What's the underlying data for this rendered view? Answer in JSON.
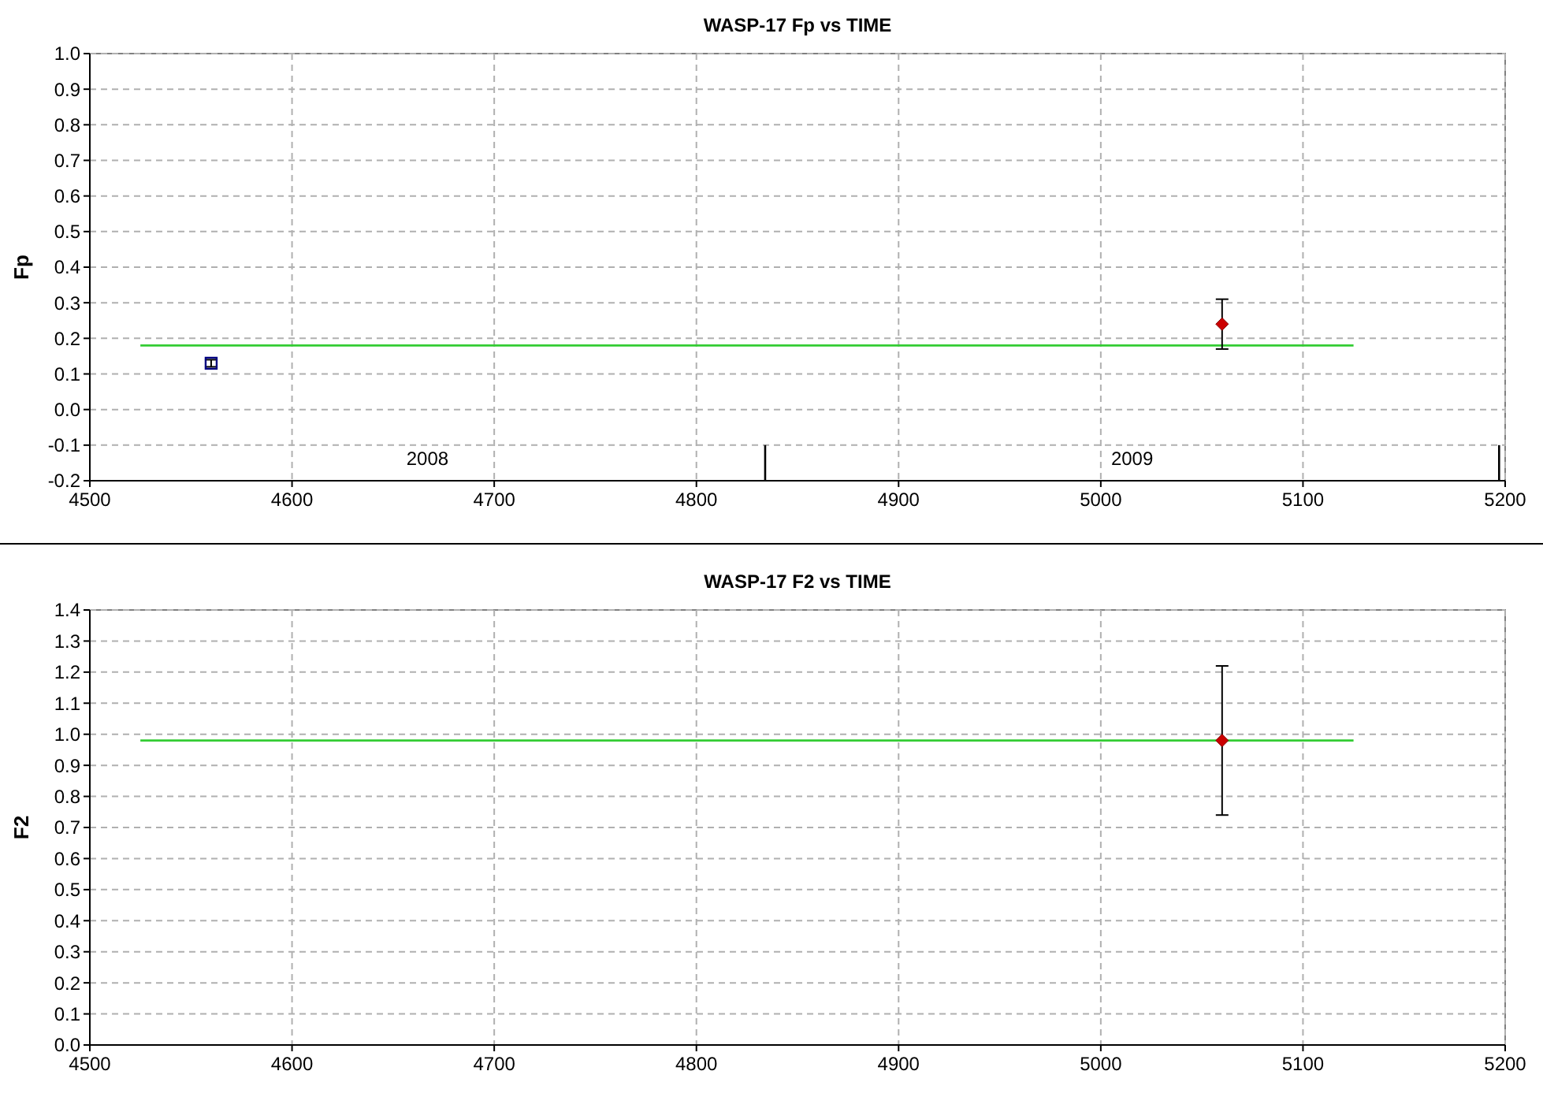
{
  "chart_data": [
    {
      "type": "scatter",
      "title": "WASP-17 Fp vs TIME",
      "ylabel": "Fp",
      "xlim": [
        4500,
        5200
      ],
      "xticks": [
        4500,
        4600,
        4700,
        4800,
        4900,
        5000,
        5100,
        5200
      ],
      "ylim": [
        -0.2,
        1.0
      ],
      "yticks": [
        {
          "value": -0.2,
          "label": "-0.2"
        },
        {
          "value": -0.1,
          "label": "-0.1"
        },
        {
          "value": 0,
          "label": "0.0"
        },
        {
          "value": 0.1,
          "label": "0.1"
        },
        {
          "value": 0.2,
          "label": "0.2"
        },
        {
          "value": 0.3,
          "label": "0.3"
        },
        {
          "value": 0.4,
          "label": "0.4"
        },
        {
          "value": 0.5,
          "label": "0.5"
        },
        {
          "value": 0.6,
          "label": "0.6"
        },
        {
          "value": 0.7,
          "label": "0.7"
        },
        {
          "value": 0.8,
          "label": "0.8"
        },
        {
          "value": 0.9,
          "label": "0.9"
        },
        {
          "value": 1.0,
          "label": "1.0"
        }
      ],
      "grid": true,
      "series": [
        {
          "type": "line",
          "color": "#33cc33",
          "x": [
            4525,
            5125
          ],
          "values": [
            0.18,
            0.18
          ]
        },
        {
          "type": "line",
          "color": "#000000",
          "x": [
            4834,
            4834
          ],
          "values": [
            -0.2,
            -0.1
          ]
        },
        {
          "type": "line",
          "color": "#000000",
          "x": [
            5197,
            5197
          ],
          "values": [
            -0.2,
            -0.1
          ]
        },
        {
          "type": "scatter",
          "marker": "square",
          "color": "#000080",
          "x": [
            4560
          ],
          "values": [
            0.13
          ],
          "errors": [
            [
              0.12,
              0.14
            ]
          ]
        },
        {
          "type": "scatter",
          "marker": "diamond",
          "color": "#cc0000",
          "x": [
            5060
          ],
          "values": [
            0.24
          ],
          "errors": [
            [
              0.17,
              0.31
            ]
          ]
        }
      ],
      "annotations": [
        "2008",
        "2009"
      ]
    },
    {
      "type": "scatter",
      "title": "WASP-17 F2 vs TIME",
      "ylabel": "F2",
      "xlim": [
        4500,
        5200
      ],
      "xticks": [
        4500,
        4600,
        4700,
        4800,
        4900,
        5000,
        5100,
        5200
      ],
      "ylim": [
        0,
        1.4
      ],
      "yticks": [
        {
          "value": 0,
          "label": "0.0"
        },
        {
          "value": 0.1,
          "label": "0.1"
        },
        {
          "value": 0.2,
          "label": "0.2"
        },
        {
          "value": 0.3,
          "label": "0.3"
        },
        {
          "value": 0.4,
          "label": "0.4"
        },
        {
          "value": 0.5,
          "label": "0.5"
        },
        {
          "value": 0.6,
          "label": "0.6"
        },
        {
          "value": 0.7,
          "label": "0.7"
        },
        {
          "value": 0.8,
          "label": "0.8"
        },
        {
          "value": 0.9,
          "label": "0.9"
        },
        {
          "value": 1.0,
          "label": "1.0"
        },
        {
          "value": 1.1,
          "label": "1.1"
        },
        {
          "value": 1.2,
          "label": "1.2"
        },
        {
          "value": 1.3,
          "label": "1.3"
        },
        {
          "value": 1.4,
          "label": "1.4"
        }
      ],
      "grid": true,
      "series": [
        {
          "type": "line",
          "color": "#33cc33",
          "x": [
            4525,
            5125
          ],
          "values": [
            0.98,
            0.98
          ]
        },
        {
          "type": "scatter",
          "marker": "diamond",
          "color": "#cc0000",
          "x": [
            5060
          ],
          "values": [
            0.98
          ],
          "errors": [
            [
              0.74,
              1.22
            ]
          ]
        }
      ]
    }
  ]
}
